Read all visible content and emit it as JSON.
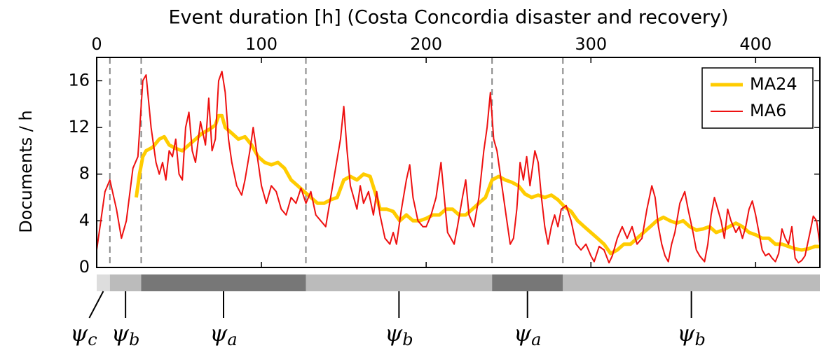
{
  "chart_data": {
    "type": "line",
    "title": "Event duration [h] (Costa Concordia disaster and recovery)",
    "ylabel": "Documents / h",
    "xlim": [
      0,
      439
    ],
    "xticks": [
      0,
      100,
      200,
      300,
      400
    ],
    "ylim": [
      0,
      18
    ],
    "yticks": [
      0,
      4,
      8,
      12,
      16
    ],
    "legend": "upper right",
    "vlines": [
      8,
      27,
      127,
      240,
      283
    ],
    "series": [
      {
        "name": "MA24",
        "color": "#ffcc00",
        "width": 5,
        "x": [
          24,
          26,
          28,
          30,
          34,
          38,
          41,
          44,
          48,
          52,
          56,
          60,
          64,
          68,
          72,
          74,
          76,
          78,
          82,
          86,
          90,
          94,
          98,
          102,
          106,
          110,
          114,
          118,
          122,
          126,
          130,
          134,
          138,
          142,
          146,
          150,
          154,
          158,
          162,
          166,
          170,
          172,
          176,
          180,
          184,
          188,
          192,
          196,
          200,
          204,
          208,
          212,
          216,
          220,
          224,
          228,
          232,
          236,
          240,
          244,
          248,
          252,
          256,
          260,
          264,
          268,
          272,
          276,
          280,
          284,
          288,
          292,
          296,
          300,
          304,
          308,
          312,
          316,
          320,
          324,
          328,
          332,
          336,
          340,
          344,
          348,
          352,
          356,
          360,
          364,
          368,
          372,
          376,
          380,
          384,
          388,
          392,
          396,
          400,
          404,
          408,
          412,
          416,
          420,
          424,
          428,
          432,
          436,
          439
        ],
        "values": [
          6,
          8,
          9.5,
          10,
          10.3,
          11,
          11.2,
          10.5,
          10.2,
          10,
          10.5,
          11,
          11.5,
          11.8,
          12.2,
          13,
          13,
          12,
          11.5,
          11,
          11.2,
          10.5,
          9.5,
          9,
          8.8,
          9,
          8.5,
          7.5,
          7,
          6.5,
          6,
          5.5,
          5.5,
          5.8,
          6,
          7.5,
          7.8,
          7.5,
          8,
          7.8,
          6,
          5,
          5,
          4.8,
          4,
          4.5,
          4,
          4,
          4.2,
          4.5,
          4.5,
          5,
          5,
          4.5,
          4.5,
          5,
          5.5,
          6,
          7.5,
          7.8,
          7.5,
          7.3,
          7,
          6.3,
          6,
          6.2,
          6,
          6.2,
          5.8,
          5.2,
          4.8,
          4,
          3.5,
          3,
          2.5,
          2,
          1.2,
          1.5,
          2,
          2,
          2.5,
          3,
          3.5,
          4,
          4.3,
          4,
          3.8,
          4,
          3.5,
          3.2,
          3.3,
          3.5,
          3,
          3.2,
          3.5,
          3.8,
          3.5,
          3,
          2.8,
          2.5,
          2.5,
          2,
          2,
          1.8,
          1.6,
          1.5,
          1.6,
          1.8,
          1.8
        ]
      },
      {
        "name": "MA6",
        "color": "#ee1111",
        "width": 2,
        "x": [
          0,
          5,
          8,
          12,
          15,
          18,
          22,
          25,
          28,
          30,
          33,
          36,
          38,
          40,
          42,
          44,
          46,
          48,
          50,
          52,
          54,
          56,
          58,
          60,
          63,
          66,
          68,
          70,
          72,
          74,
          76,
          78,
          80,
          82,
          85,
          88,
          90,
          93,
          95,
          98,
          100,
          103,
          106,
          109,
          112,
          115,
          118,
          121,
          124,
          127,
          130,
          133,
          136,
          139,
          142,
          145,
          148,
          150,
          152,
          154,
          156,
          158,
          160,
          162,
          165,
          168,
          170,
          172,
          175,
          178,
          180,
          182,
          185,
          188,
          190,
          192,
          195,
          198,
          200,
          203,
          206,
          209,
          211,
          213,
          215,
          217,
          219,
          222,
          224,
          226,
          229,
          232,
          235,
          237,
          239,
          241,
          243,
          245,
          247,
          249,
          251,
          253,
          255,
          257,
          259,
          261,
          263,
          266,
          268,
          270,
          272,
          274,
          276,
          278,
          280,
          282,
          285,
          288,
          291,
          294,
          297,
          300,
          302,
          305,
          308,
          311,
          313,
          316,
          319,
          322,
          325,
          328,
          331,
          334,
          337,
          339,
          341,
          343,
          345,
          347,
          349,
          351,
          354,
          357,
          359,
          362,
          364,
          366,
          369,
          371,
          373,
          375,
          377,
          379,
          381,
          383,
          385,
          388,
          390,
          392,
          394,
          396,
          398,
          400,
          402,
          404,
          406,
          408,
          410,
          412,
          414,
          416,
          418,
          420,
          422,
          424,
          426,
          428,
          430,
          433,
          435,
          437,
          439
        ],
        "values": [
          1.5,
          6.5,
          7.5,
          5,
          2.5,
          4,
          8.5,
          9.5,
          16,
          16.5,
          12,
          9,
          8,
          9,
          7.5,
          10,
          9.5,
          11,
          8,
          7.5,
          12,
          13.3,
          10,
          9,
          12.5,
          10.5,
          14.5,
          10,
          11,
          16,
          16.8,
          15,
          11,
          9,
          7,
          6.2,
          7.5,
          10,
          12,
          9,
          7,
          5.5,
          7,
          6.5,
          5,
          4.5,
          6,
          5.5,
          6.8,
          5.5,
          6.5,
          4.5,
          4,
          3.5,
          6,
          8.5,
          11,
          13.8,
          10,
          7,
          6,
          5,
          7,
          5.5,
          6.5,
          4.5,
          6.5,
          4.5,
          2.5,
          2,
          3,
          2,
          5,
          7.5,
          8.8,
          6,
          4,
          3.5,
          3.5,
          4.5,
          6,
          9,
          6,
          3,
          2.5,
          2,
          3.5,
          6,
          7.5,
          4.5,
          3.5,
          6,
          10,
          12,
          15,
          11,
          10,
          8,
          6,
          4,
          2,
          2.5,
          5,
          9,
          7.5,
          9.5,
          7,
          10,
          9,
          6,
          3.5,
          2,
          3.5,
          4.5,
          3.5,
          5,
          5.3,
          4,
          2,
          1.5,
          2,
          1,
          0.5,
          1.8,
          1.5,
          0.4,
          1,
          2.5,
          3.5,
          2.5,
          3.5,
          2,
          2.5,
          5,
          7,
          6,
          3.5,
          2,
          1,
          0.5,
          2,
          3,
          5.5,
          6.5,
          5,
          3,
          1.5,
          1,
          0.5,
          2,
          4.5,
          6,
          5,
          4,
          2.5,
          5,
          4,
          3,
          3.5,
          2.5,
          3.5,
          5,
          5.7,
          4.5,
          3,
          1.5,
          1,
          1.2,
          0.8,
          0.5,
          1.2,
          3.3,
          2.5,
          2,
          3.5,
          0.8,
          0.4,
          0.6,
          1,
          3,
          4.4,
          4,
          2
        ]
      }
    ],
    "phases": [
      {
        "symbol": "ψ",
        "subscript": "c",
        "start": 0,
        "end": 8,
        "color": "#dddddd"
      },
      {
        "symbol": "ψ",
        "subscript": "b",
        "start": 8,
        "end": 27,
        "color": "#bbbbbb"
      },
      {
        "symbol": "ψ",
        "subscript": "a",
        "start": 27,
        "end": 127,
        "color": "#777777"
      },
      {
        "symbol": "ψ",
        "subscript": "b",
        "start": 127,
        "end": 240,
        "color": "#bbbbbb"
      },
      {
        "symbol": "ψ",
        "subscript": "a",
        "start": 240,
        "end": 283,
        "color": "#777777"
      },
      {
        "symbol": "ψ",
        "subscript": "b",
        "start": 283,
        "end": 439,
        "color": "#bbbbbb"
      }
    ]
  }
}
